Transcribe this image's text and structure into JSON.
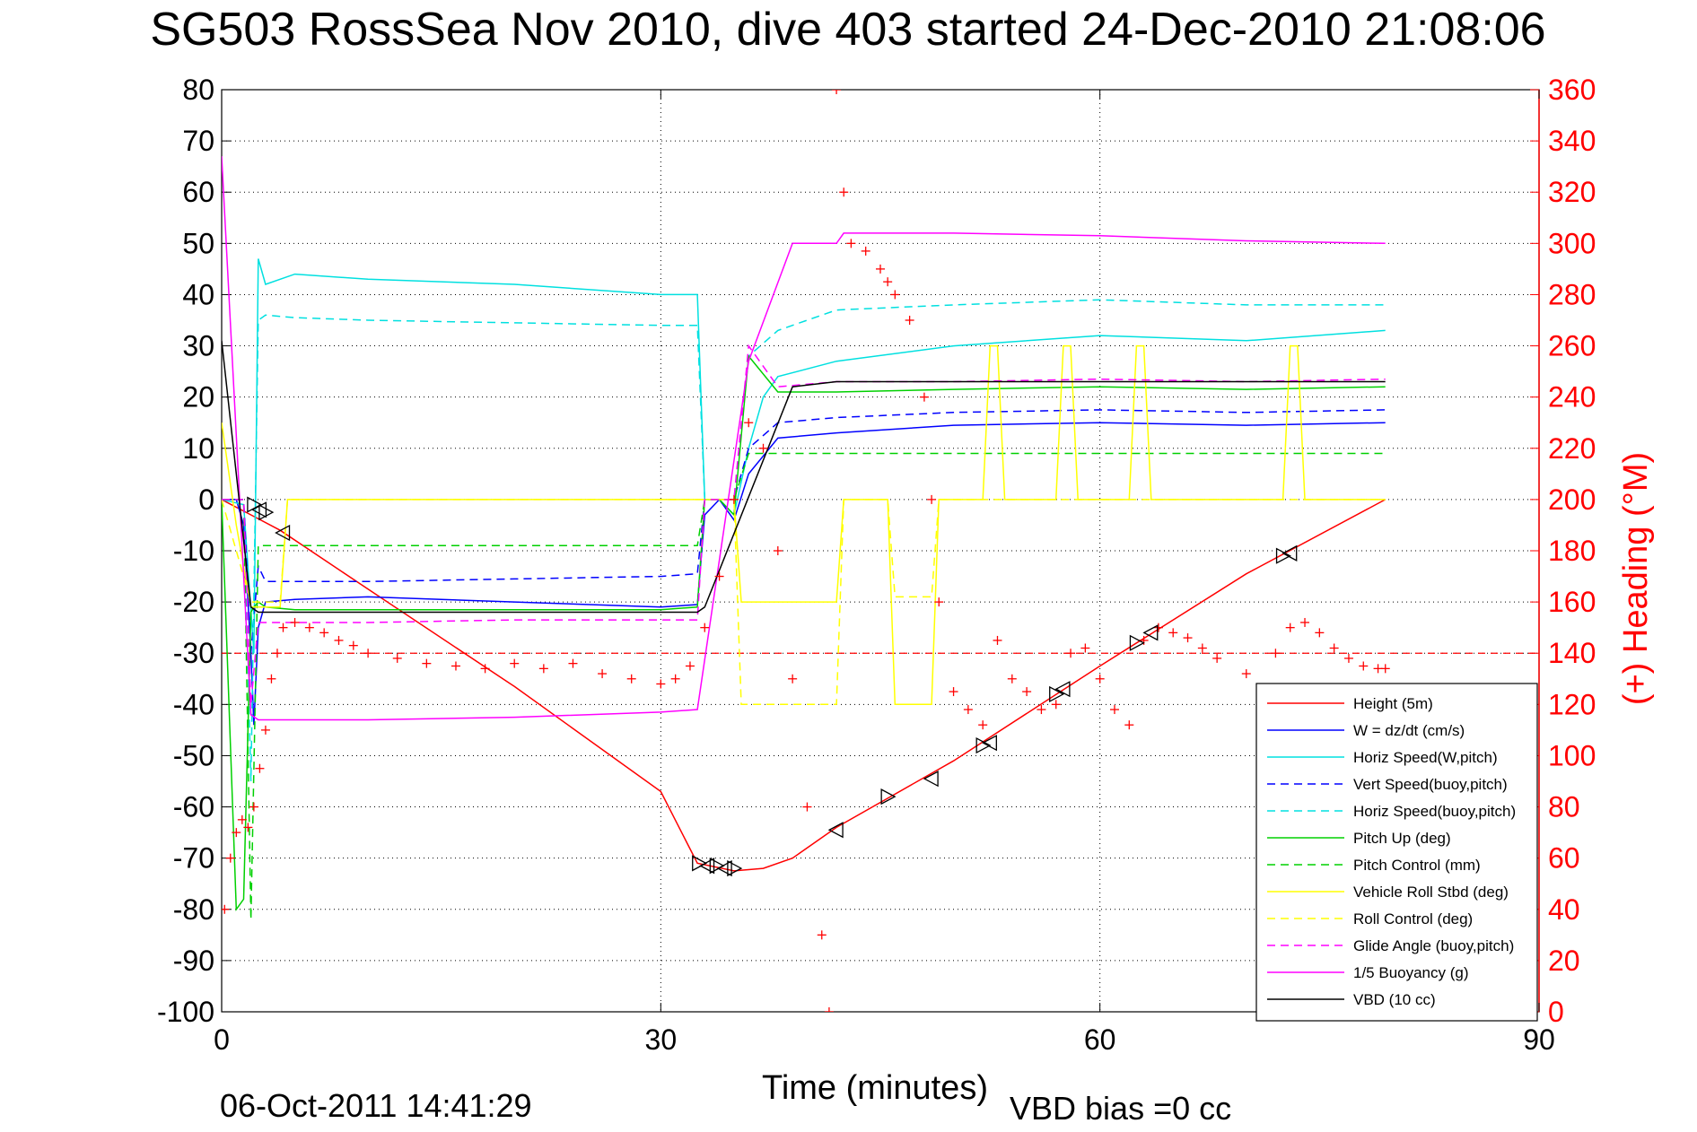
{
  "chart_data": {
    "type": "line",
    "title": "SG503 RossSea Nov 2010, dive 403 started 24-Dec-2010 21:08:06",
    "xlabel": "Time (minutes)",
    "ylabel": "",
    "y2label": "(+) Heading (°M)",
    "footer_left": "06-Oct-2011 14:41:29",
    "footer_right": "VBD bias =0 cc",
    "xlim": [
      0,
      90
    ],
    "ylim": [
      -100,
      80
    ],
    "y2lim": [
      0,
      360
    ],
    "xticks": [
      0,
      30,
      60,
      90
    ],
    "yticks": [
      80,
      70,
      60,
      50,
      40,
      30,
      20,
      10,
      0,
      -10,
      -20,
      -30,
      -40,
      -50,
      -60,
      -70,
      -80,
      -90,
      -100
    ],
    "y2ticks": [
      360,
      340,
      320,
      300,
      280,
      260,
      240,
      220,
      200,
      180,
      160,
      140,
      120,
      100,
      80,
      60,
      40,
      20,
      0
    ],
    "grid": true,
    "legend_position": "bottom-right",
    "series": [
      {
        "name": "Height (5m)",
        "color": "#ff0000",
        "style": "solid",
        "x": [
          0,
          1,
          2,
          4,
          10,
          20,
          30,
          32.5,
          35,
          37,
          39,
          42,
          50,
          60,
          70,
          79.5
        ],
        "y": [
          0,
          -1.5,
          -3,
          -6,
          -17.5,
          -36.5,
          -57,
          -71,
          -72.5,
          -72,
          -70,
          -64,
          -51,
          -32.5,
          -14.5,
          0
        ]
      },
      {
        "name": "W = dz/dt (cm/s)",
        "color": "#0000ff",
        "style": "solid",
        "x": [
          0,
          1,
          1.5,
          2,
          2.2,
          2.5,
          3,
          5,
          10,
          20,
          30,
          32.5,
          33,
          34,
          35,
          36,
          38,
          42,
          50,
          60,
          70,
          79.5
        ],
        "y": [
          0,
          0,
          -5,
          -30,
          -44,
          -25,
          -20,
          -19.5,
          -19,
          -20,
          -21,
          -20.5,
          -3,
          0,
          -4,
          5,
          12,
          13,
          14.5,
          15,
          14.5,
          15
        ]
      },
      {
        "name": "Horiz Speed(W,pitch)",
        "color": "#00e0e0",
        "style": "solid",
        "x": [
          0,
          1.5,
          2.2,
          2.5,
          3,
          5,
          10,
          20,
          30,
          32.5,
          33,
          34,
          35,
          36,
          37,
          38,
          42,
          50,
          60,
          70,
          79.5
        ],
        "y": [
          0,
          -1,
          -30,
          47,
          42,
          44,
          43,
          42,
          40,
          40,
          0,
          0,
          -3,
          10,
          20,
          24,
          27,
          30,
          32,
          31,
          33
        ]
      },
      {
        "name": "Vert Speed(buoy,pitch)",
        "color": "#0000ff",
        "style": "dashed",
        "x": [
          0,
          1.5,
          2,
          2.5,
          3,
          5,
          10,
          20,
          30,
          32.5,
          33,
          35,
          36,
          38,
          42,
          50,
          60,
          70,
          79.5
        ],
        "y": [
          0,
          0,
          -30,
          -13,
          -16,
          -16,
          -16,
          -15.5,
          -15,
          -14.5,
          0,
          0,
          10,
          15,
          16,
          17,
          17.5,
          17,
          17.5
        ]
      },
      {
        "name": "Horiz Speed(buoy,pitch)",
        "color": "#00e0e0",
        "style": "dashed",
        "x": [
          0,
          1.5,
          2,
          2.5,
          3,
          5,
          10,
          20,
          30,
          32.5,
          33,
          35,
          36,
          38,
          42,
          50,
          60,
          70,
          79.5
        ],
        "y": [
          0,
          0,
          -55,
          35,
          36,
          35.5,
          35,
          34.5,
          34,
          34,
          0,
          0,
          28,
          33,
          37,
          38,
          39,
          38,
          38
        ]
      },
      {
        "name": "Pitch Up (deg)",
        "color": "#00d000",
        "style": "solid",
        "x": [
          0,
          1,
          1.5,
          2,
          2.2,
          2.5,
          3,
          5,
          10,
          20,
          30,
          32.5,
          33,
          34,
          35,
          36,
          38,
          42,
          50,
          60,
          70,
          79.5
        ],
        "y": [
          0,
          -80,
          -78,
          -22,
          -21,
          -20,
          -21,
          -21.5,
          -21.5,
          -21.5,
          -21.5,
          -21,
          0,
          0,
          -3,
          28,
          21,
          21,
          21.5,
          22,
          21.5,
          22
        ]
      },
      {
        "name": "Pitch Control (mm)",
        "color": "#00d000",
        "style": "dashed",
        "x": [
          0,
          1.5,
          2,
          2.5,
          3,
          32.5,
          33,
          35,
          36,
          79.5
        ],
        "y": [
          0,
          0,
          -82,
          -9,
          -9,
          -9,
          0,
          0,
          9,
          9
        ]
      },
      {
        "name": "Vehicle Roll Stbd (deg)",
        "color": "#ffff00",
        "style": "solid",
        "x": [
          0,
          1,
          2,
          4,
          4.5,
          32.5,
          33,
          35,
          35.5,
          42,
          42.5,
          45.5,
          46,
          48.5,
          49,
          52,
          52.5,
          53,
          53.5,
          57,
          57.5,
          58,
          58.5,
          62,
          62.5,
          63,
          63.5,
          72.5,
          73,
          73.5,
          74,
          79.5
        ],
        "y": [
          15,
          -5,
          -21,
          -21,
          0,
          0,
          0,
          0,
          -20,
          -20,
          0,
          0,
          -40,
          -40,
          0,
          0,
          30,
          30,
          0,
          0,
          30,
          30,
          0,
          0,
          30,
          30,
          0,
          0,
          30,
          30,
          0,
          0
        ]
      },
      {
        "name": "Roll Control (deg)",
        "color": "#ffff00",
        "style": "dashed",
        "x": [
          0,
          2,
          4,
          4.5,
          32.5,
          33,
          35,
          35.5,
          42,
          42.5,
          45.5,
          46,
          48.5,
          49,
          79.5
        ],
        "y": [
          0,
          -20,
          -20,
          0,
          0,
          0,
          0,
          -40,
          -40,
          0,
          0,
          -19,
          -19,
          0,
          0
        ]
      },
      {
        "name": "Glide Angle (buoy,pitch)",
        "color": "#ff00ff",
        "style": "dashed",
        "x": [
          0,
          1.5,
          2,
          2.5,
          3,
          5,
          10,
          20,
          30,
          32.5,
          33,
          35,
          36,
          38,
          42,
          50,
          60,
          70,
          79.5
        ],
        "y": [
          0,
          0,
          -40,
          -24,
          -24,
          -24,
          -24,
          -23.5,
          -23.5,
          -23.5,
          0,
          0,
          30,
          22,
          23,
          23,
          23.5,
          23,
          23.5
        ]
      },
      {
        "name": "1/5 Buoyancy (g)",
        "color": "#ff00ff",
        "style": "solid",
        "x": [
          0,
          2,
          2.5,
          10,
          20,
          30,
          32.5,
          36,
          39,
          42,
          42.5,
          50,
          60,
          70,
          79.5
        ],
        "y": [
          67,
          -42,
          -43,
          -43,
          -42.5,
          -41.5,
          -41,
          27,
          50,
          50,
          52,
          52,
          51.5,
          50.5,
          50
        ]
      },
      {
        "name": "VBD (10 cc)",
        "color": "#000000",
        "style": "solid",
        "x": [
          0,
          2,
          2.5,
          32.5,
          33,
          39,
          42,
          79.5
        ],
        "y": [
          31,
          -21,
          -22,
          -22,
          -21,
          22,
          23,
          23
        ]
      }
    ],
    "heading_series": {
      "name": "(+) Heading",
      "color": "#ff0000",
      "axis": "right",
      "reference_deg": 140,
      "x": [
        0.2,
        0.6,
        1.0,
        1.4,
        1.8,
        2.2,
        2.6,
        3.0,
        3.4,
        3.8,
        4.2,
        5,
        6,
        7,
        8,
        9,
        10,
        12,
        14,
        16,
        18,
        20,
        22,
        24,
        26,
        28,
        30,
        31,
        32,
        33,
        34,
        35,
        36,
        37,
        38,
        39,
        40,
        41,
        41.5,
        42,
        42.5,
        43,
        44,
        45,
        45.5,
        46,
        47,
        48,
        48.5,
        49,
        50,
        51,
        52,
        53,
        54,
        55,
        56,
        57,
        58,
        59,
        60,
        61,
        62,
        63,
        64,
        65,
        66,
        67,
        68,
        70,
        72,
        73,
        74,
        75,
        76,
        77,
        78,
        79,
        79.5
      ],
      "y": [
        40,
        60,
        70,
        75,
        72,
        80,
        95,
        110,
        130,
        140,
        150,
        152,
        150,
        148,
        145,
        143,
        140,
        138,
        136,
        135,
        134,
        136,
        134,
        136,
        132,
        130,
        128,
        130,
        135,
        150,
        170,
        200,
        230,
        220,
        180,
        130,
        80,
        30,
        0,
        360,
        320,
        300,
        297,
        290,
        285,
        280,
        270,
        240,
        200,
        160,
        125,
        118,
        112,
        145,
        130,
        125,
        118,
        120,
        140,
        142,
        130,
        118,
        112,
        145,
        150,
        148,
        146,
        142,
        138,
        132,
        140,
        150,
        152,
        148,
        142,
        138,
        135,
        134,
        134
      ]
    },
    "triangle_markers": {
      "color": "#000000",
      "points": [
        [
          2.2,
          -1
        ],
        [
          2.6,
          -2
        ],
        [
          3.0,
          -2.5
        ],
        [
          4.2,
          -6.5
        ],
        [
          32.6,
          -71
        ],
        [
          33.2,
          -71.5
        ],
        [
          33.8,
          -71.5
        ],
        [
          34.4,
          -72
        ],
        [
          35,
          -72
        ],
        [
          42,
          -64.5
        ],
        [
          45.5,
          -58
        ],
        [
          48.5,
          -54.5
        ],
        [
          52,
          -48
        ],
        [
          52.5,
          -47.5
        ],
        [
          57,
          -38
        ],
        [
          57.5,
          -37
        ],
        [
          62.5,
          -28
        ],
        [
          63.5,
          -26
        ],
        [
          72.5,
          -11
        ],
        [
          73,
          -10.5
        ]
      ]
    }
  }
}
